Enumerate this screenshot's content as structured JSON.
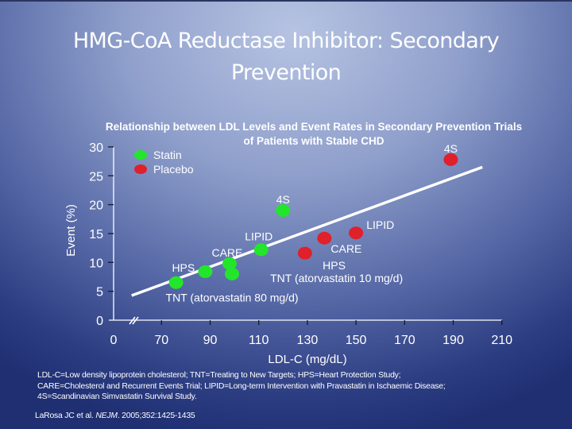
{
  "slide": {
    "title_line1": "HMG-CoA Reductase Inhibitor: Secondary",
    "title_line2": "Prevention"
  },
  "chart_data": {
    "type": "scatter",
    "title": "Relationship between LDL Levels and Event Rates in Secondary Prevention Trials of Patients with Stable CHD",
    "title_line1": "Relationship between LDL Levels and Event Rates in Secondary Prevention Trials",
    "title_line2": "of Patients with Stable CHD",
    "xlabel": "LDL-C (mg/dL)",
    "ylabel": "Event (%)",
    "x_ticks": [
      "0",
      "70",
      "90",
      "110",
      "130",
      "150",
      "170",
      "190",
      "210"
    ],
    "x_tick_values": [
      0,
      70,
      90,
      110,
      130,
      150,
      170,
      190,
      210
    ],
    "x_axis_break": "between 0 and 70",
    "xlim": [
      60,
      210
    ],
    "y_ticks": [
      "0",
      "5",
      "10",
      "15",
      "20",
      "25",
      "30"
    ],
    "y_tick_values": [
      0,
      5,
      10,
      15,
      20,
      25,
      30
    ],
    "ylim": [
      0,
      30
    ],
    "grid": false,
    "legend": {
      "placement": "top-left",
      "entries": [
        {
          "name": "Statin",
          "color": "#22e62a"
        },
        {
          "name": "Placebo",
          "color": "#e0202a"
        }
      ]
    },
    "series": [
      {
        "name": "Statin",
        "color": "#22e62a",
        "points": [
          {
            "label": "TNT (atorvastatin 80 mg/d)",
            "x": 76,
            "y": 6.5
          },
          {
            "label": "HPS",
            "x": 88,
            "y": 8.4
          },
          {
            "label": "CARE",
            "x": 98,
            "y": 9.8
          },
          {
            "label": "TNT (atorvastatin 10 mg/d)",
            "x": 99,
            "y": 8.0
          },
          {
            "label": "LIPID",
            "x": 111,
            "y": 12.2
          },
          {
            "label": "4S",
            "x": 120,
            "y": 19.0
          }
        ]
      },
      {
        "name": "Placebo",
        "color": "#e0202a",
        "points": [
          {
            "label": "HPS",
            "x": 129,
            "y": 11.6
          },
          {
            "label": "CARE",
            "x": 137,
            "y": 14.2
          },
          {
            "label": "LIPID",
            "x": 150,
            "y": 15.1
          },
          {
            "label": "4S",
            "x": 189,
            "y": 27.8
          }
        ]
      }
    ],
    "trend_line": {
      "x": [
        60,
        202
      ],
      "y": [
        4.4,
        26.5
      ],
      "color": "#ffffff"
    },
    "annotations": [
      {
        "text": "4S",
        "anchor_x": 120,
        "anchor_y": 20.2
      },
      {
        "text": "LIPID",
        "anchor_x": 110,
        "anchor_y": 13.8
      },
      {
        "text": "CARE",
        "anchor_x": 97,
        "anchor_y": 11.0
      },
      {
        "text": "HPS",
        "anchor_x": 79,
        "anchor_y": 8.4
      },
      {
        "text": "4S",
        "anchor_x": 189,
        "anchor_y": 29.0
      },
      {
        "text": "LIPID",
        "anchor_x": 160,
        "anchor_y": 15.8
      },
      {
        "text": "CARE",
        "anchor_x": 146,
        "anchor_y": 11.7
      },
      {
        "text": "HPS",
        "anchor_x": 141,
        "anchor_y": 8.8
      },
      {
        "text": "TNT (atorvastatin 10 mg/d)",
        "anchor_x": 142,
        "anchor_y": 6.6
      },
      {
        "text": "TNT (atorvastatin 80 mg/d)",
        "anchor_x": 99,
        "anchor_y": 3.2
      }
    ]
  },
  "footnote": {
    "line1": "LDL-C=Low density lipoprotein cholesterol; TNT=Treating to New Targets; HPS=Heart Protection Study;",
    "line2": "CARE=Cholesterol and Recurrent Events Trial; LIPID=Long-term Intervention with Pravastatin in Ischaemic Disease;",
    "line3": "4S=Scandinavian Simvastatin Survival Study."
  },
  "citation": {
    "authors": "LaRosa JC et al. ",
    "journal": "NEJM",
    "details": ". 2005;352:1425-1435"
  }
}
